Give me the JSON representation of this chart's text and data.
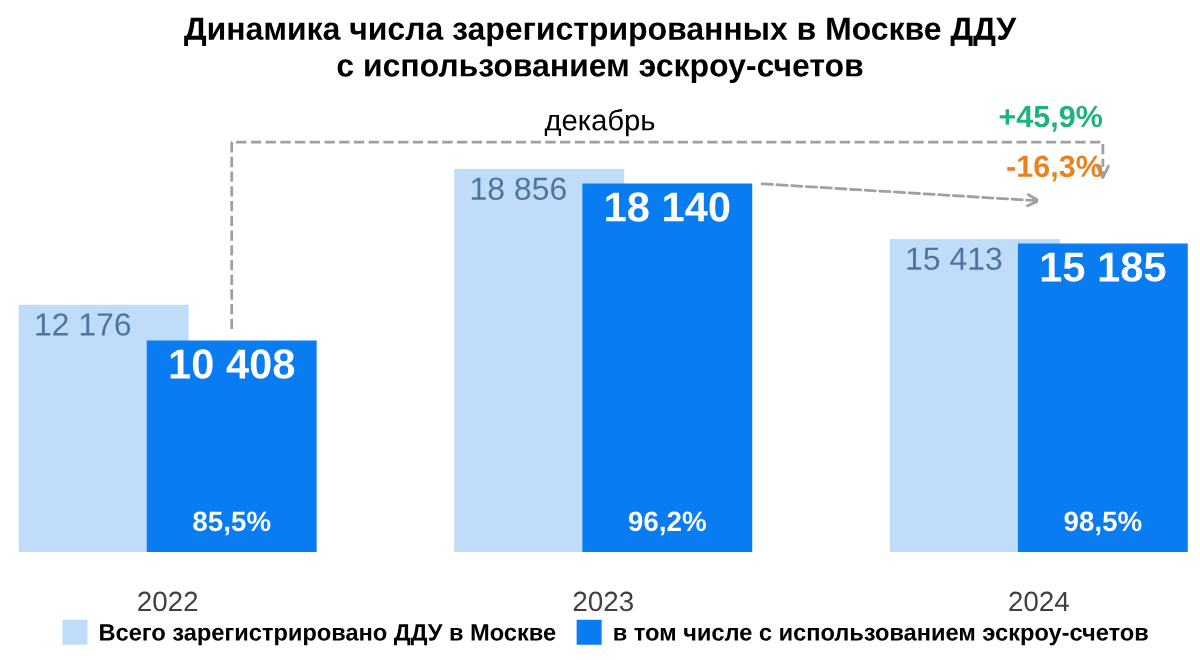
{
  "chart_data": {
    "type": "bar",
    "title": "Динамика числа зарегистрированных в Москве ДДУ\nс использованием эскроу-счетов",
    "subtitle": "декабрь",
    "categories": [
      "2022",
      "2023",
      "2024"
    ],
    "series": [
      {
        "name": "Всего зарегистрировано ДДУ в Москве",
        "color": "#bfdcf8",
        "values": [
          12176,
          18856,
          15413
        ],
        "value_labels": [
          "12 176",
          "18 856",
          "15 413"
        ]
      },
      {
        "name": "в том числе с использованием эскроу-счетов",
        "color": "#0a7cf2",
        "values": [
          10408,
          18140,
          15185
        ],
        "value_labels": [
          "10 408",
          "18 140",
          "15 185"
        ]
      }
    ],
    "annotations": [
      "+45,9%",
      "-16,3%",
      "85,5%",
      "96,2%",
      "98,5%"
    ],
    "legend": "bottom",
    "grid": false,
    "tick_labels": "x"
  }
}
